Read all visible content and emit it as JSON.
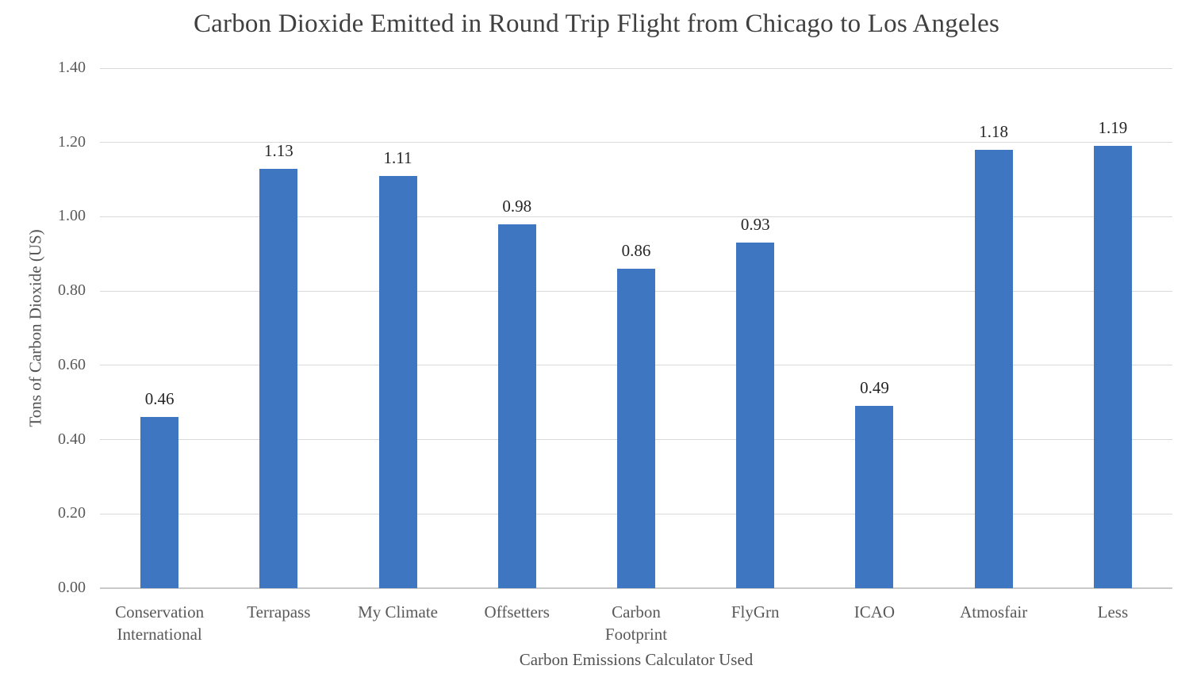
{
  "chart_data": {
    "type": "bar",
    "title": "Carbon Dioxide Emitted in Round Trip Flight from Chicago to Los Angeles",
    "xlabel": "Carbon Emissions Calculator Used",
    "ylabel": "Tons of Carbon Dioxide (US)",
    "categories": [
      "Conservation\nInternational",
      "Terrapass",
      "My Climate",
      "Offsetters",
      "Carbon\nFootprint",
      "FlyGrn",
      "ICAO",
      "Atmosfair",
      "Less"
    ],
    "values": [
      0.46,
      1.13,
      1.11,
      0.98,
      0.86,
      0.93,
      0.49,
      1.18,
      1.19
    ],
    "value_labels": [
      "0.46",
      "1.13",
      "1.11",
      "0.98",
      "0.86",
      "0.93",
      "0.49",
      "1.18",
      "1.19"
    ],
    "ylim": [
      0,
      1.4
    ],
    "yticks": [
      "0.00",
      "0.20",
      "0.40",
      "0.60",
      "0.80",
      "1.00",
      "1.20",
      "1.40"
    ],
    "grid": true,
    "legend_position": "none",
    "bar_color": "#3E76C1",
    "gridline_color": "#D9D9D9",
    "axis_line_color": "#C9C9C9"
  }
}
